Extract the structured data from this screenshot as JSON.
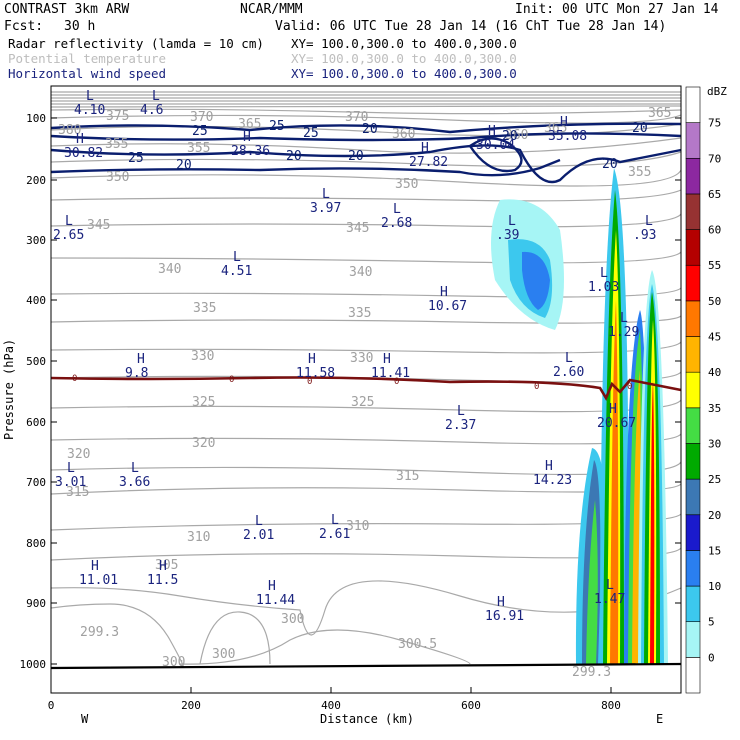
{
  "header": {
    "model_line": "CONTRAST  3km ARW",
    "center": "NCAR/MMM",
    "init": "Init: 00 UTC Mon 27 Jan 14",
    "fcst_label": "Fcst:",
    "fcst_value": "30 h",
    "valid": "Valid: 06 UTC Tue 28 Jan 14 (16 ChT Tue 28 Jan 14)"
  },
  "fields": [
    {
      "name": "Radar reflectivity (lamda = 10 cm)",
      "xy": "XY= 100.0,300.0 to 400.0,300.0",
      "color": "#000000"
    },
    {
      "name": "Potential temperature",
      "xy": "XY= 100.0,300.0 to 400.0,300.0",
      "color": "#bdbdbd"
    },
    {
      "name": "Horizontal wind speed",
      "xy": "XY= 100.0,300.0 to 400.0,300.0",
      "color": "#1a237e"
    }
  ],
  "colorbar": {
    "unit": "dBZ",
    "levels": [
      "0",
      "5",
      "10",
      "15",
      "20",
      "25",
      "30",
      "35",
      "40",
      "45",
      "50",
      "55",
      "60",
      "65",
      "70",
      "75"
    ],
    "colors": [
      "#ffffff",
      "#a6f5f5",
      "#3cc8ee",
      "#2a7ff0",
      "#1a1acc",
      "#3c78b4",
      "#00aa00",
      "#44dd44",
      "#ffff00",
      "#ffb400",
      "#ff7800",
      "#ff0000",
      "#b40000",
      "#963232",
      "#8c28a0",
      "#b478c8",
      "#ffffff"
    ]
  },
  "axes": {
    "xlabel": "Distance (km)",
    "ylabel": "Pressure (hPa)",
    "xticks": [
      "0",
      "200",
      "400",
      "600",
      "800"
    ],
    "yticks": [
      "100",
      "200",
      "300",
      "400",
      "500",
      "600",
      "700",
      "800",
      "900",
      "1000"
    ],
    "west": "W",
    "east": "E"
  },
  "theta_labels": [
    "375",
    "370",
    "365",
    "360",
    "365",
    "370",
    "380",
    "365",
    "355",
    "360",
    "355",
    "350",
    "350",
    "355",
    "345",
    "345",
    "340",
    "340",
    "335",
    "335",
    "330",
    "330",
    "325",
    "325",
    "320",
    "320",
    "315",
    "315",
    "310",
    "310",
    "305",
    "300",
    "300",
    "300",
    "299.3",
    "300.5",
    "299.3"
  ],
  "wind_labels": [
    "25",
    "25",
    "20",
    "25",
    "20",
    "20",
    "25",
    "20",
    "20",
    "20",
    "20"
  ],
  "extrema": [
    {
      "t": "L",
      "v": "4.10"
    },
    {
      "t": "L",
      "v": "4.6"
    },
    {
      "t": "H",
      "v": "30.82"
    },
    {
      "t": "H",
      "v": "28.36"
    },
    {
      "t": "H",
      "v": "27.82"
    },
    {
      "t": "H",
      "v": "30.04"
    },
    {
      "t": "H",
      "v": "35.08"
    },
    {
      "t": "L",
      "v": "3.97"
    },
    {
      "t": "L",
      "v": "2.68"
    },
    {
      "t": "L",
      "v": "2.65"
    },
    {
      "t": "L",
      "v": ".39"
    },
    {
      "t": "L",
      "v": ".93"
    },
    {
      "t": "L",
      "v": "4.51"
    },
    {
      "t": "L",
      "v": "1.03"
    },
    {
      "t": "H",
      "v": "10.67"
    },
    {
      "t": "L",
      "v": "1.29"
    },
    {
      "t": "H",
      "v": "9.8"
    },
    {
      "t": "H",
      "v": "11.58"
    },
    {
      "t": "H",
      "v": "11.41"
    },
    {
      "t": "L",
      "v": "2.60"
    },
    {
      "t": "L",
      "v": "2.37"
    },
    {
      "t": "H",
      "v": "20.67"
    },
    {
      "t": "H",
      "v": "14.23"
    },
    {
      "t": "L",
      "v": "3.01"
    },
    {
      "t": "L",
      "v": "3.66"
    },
    {
      "t": "L",
      "v": "2.01"
    },
    {
      "t": "L",
      "v": "2.61"
    },
    {
      "t": "H",
      "v": "11.01"
    },
    {
      "t": "H",
      "v": "11.5"
    },
    {
      "t": "H",
      "v": "11.44"
    },
    {
      "t": "H",
      "v": "16.91"
    },
    {
      "t": "L",
      "v": "1.47"
    }
  ],
  "zero_line_labels": [
    "0",
    "0",
    "0",
    "0",
    "0",
    "0"
  ],
  "chart_data": {
    "type": "cross-section",
    "x_range_km": [
      0,
      900
    ],
    "y_range_hPa": [
      60,
      1050
    ],
    "y_axis": "pressure, decreasing upward"
  }
}
